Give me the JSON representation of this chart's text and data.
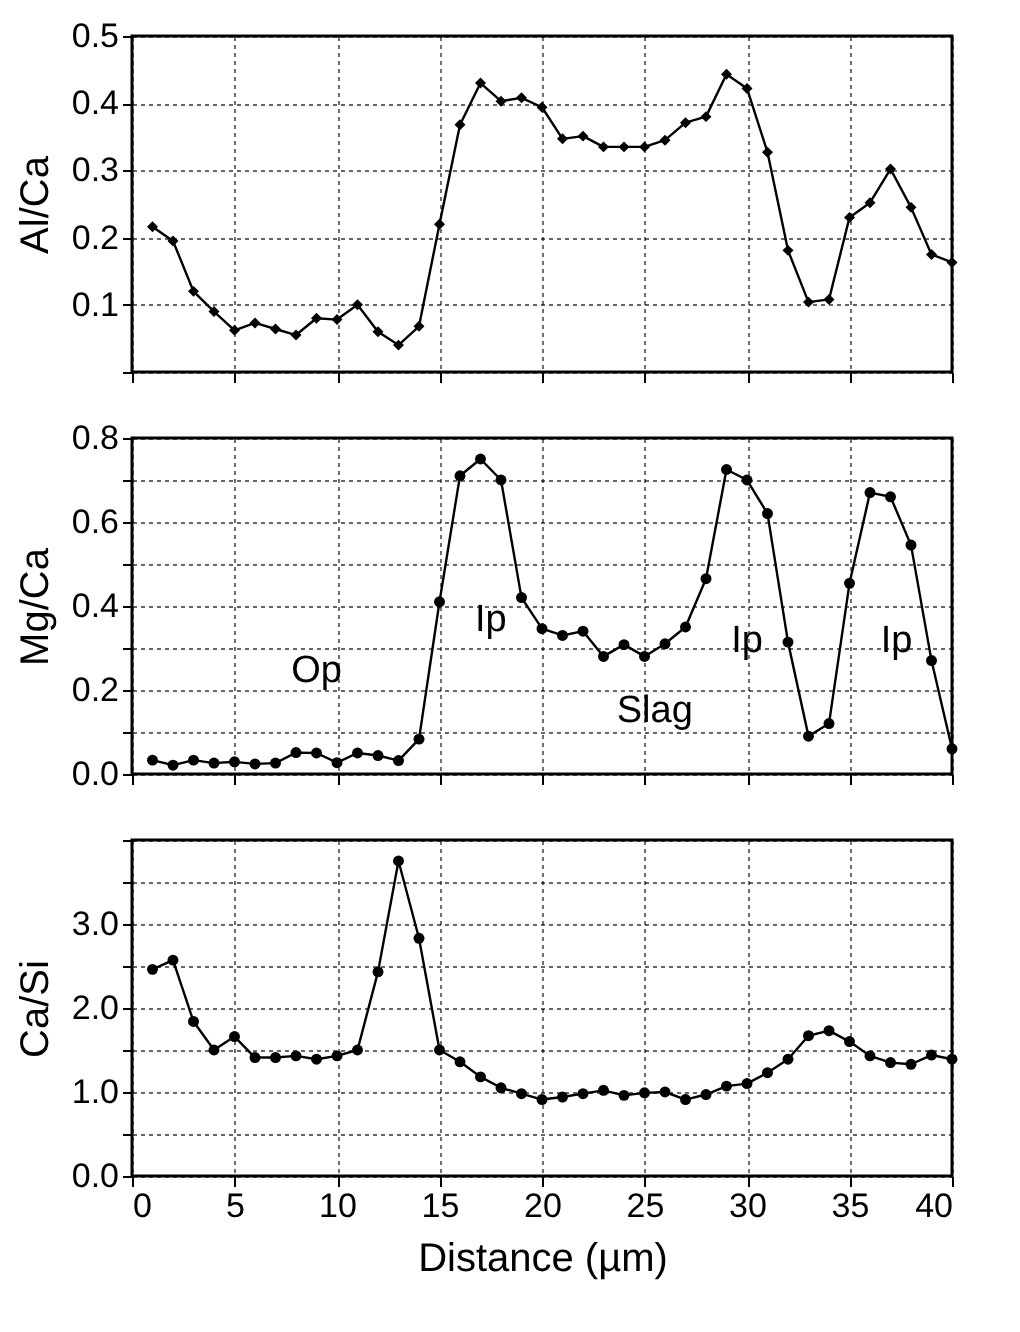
{
  "chart_data": [
    {
      "type": "line",
      "ylabel": "Al/Ca",
      "x": [
        1,
        2,
        3,
        4,
        5,
        6,
        7,
        8,
        9,
        10,
        11,
        12,
        13,
        14,
        15,
        16,
        17,
        18,
        19,
        20,
        21,
        22,
        23,
        24,
        25,
        26,
        27,
        28,
        29,
        30,
        31,
        32,
        33,
        34,
        35,
        36,
        37,
        38,
        39,
        40
      ],
      "series": [
        {
          "color": "#000000",
          "values": [
            0.216,
            0.195,
            0.12,
            0.09,
            0.062,
            0.073,
            0.064,
            0.055,
            0.08,
            0.078,
            0.1,
            0.06,
            0.04,
            0.068,
            0.22,
            0.368,
            0.43,
            0.403,
            0.408,
            0.394,
            0.347,
            0.351,
            0.335,
            0.335,
            0.335,
            0.345,
            0.371,
            0.38,
            0.443,
            0.422,
            0.327,
            0.181,
            0.104,
            0.108,
            0.23,
            0.252,
            0.302,
            0.245,
            0.175,
            0.163
          ]
        }
      ],
      "xlim": [
        0,
        40
      ],
      "xticks": [
        0,
        5,
        10,
        15,
        20,
        25,
        30,
        35,
        40
      ],
      "ylim": [
        0,
        0.5
      ],
      "yticks": [
        {
          "value": 0,
          "label": null
        },
        0.1,
        0.2,
        0.3,
        0.4,
        0.5
      ],
      "grid": true,
      "marker": "diamond",
      "line_style": "solid",
      "tick_labels": "y"
    },
    {
      "type": "line",
      "ylabel": "Mg/Ca",
      "x": [
        1,
        2,
        3,
        4,
        5,
        6,
        7,
        8,
        9,
        10,
        11,
        12,
        13,
        14,
        15,
        16,
        17,
        18,
        19,
        20,
        21,
        22,
        23,
        24,
        25,
        26,
        27,
        28,
        29,
        30,
        31,
        32,
        33,
        34,
        35,
        36,
        37,
        38,
        39,
        40
      ],
      "series": [
        {
          "color": "#000000",
          "values": [
            0.033,
            0.021,
            0.033,
            0.026,
            0.029,
            0.024,
            0.026,
            0.051,
            0.05,
            0.027,
            0.05,
            0.044,
            0.032,
            0.083,
            0.41,
            0.71,
            0.75,
            0.7,
            0.42,
            0.346,
            0.33,
            0.34,
            0.28,
            0.308,
            0.28,
            0.31,
            0.35,
            0.465,
            0.725,
            0.7,
            0.62,
            0.314,
            0.09,
            0.12,
            0.454,
            0.67,
            0.66,
            0.545,
            0.27,
            0.06
          ]
        }
      ],
      "xlim": [
        0,
        40
      ],
      "xticks": [
        0,
        5,
        10,
        15,
        20,
        25,
        30,
        35,
        40
      ],
      "ylim": [
        0,
        0.8
      ],
      "yticks": [
        {
          "value": 0,
          "label": "0.0"
        },
        {
          "value": 0.1,
          "label": null
        },
        0.2,
        {
          "value": 0.3,
          "label": null
        },
        0.4,
        {
          "value": 0.5,
          "label": null
        },
        0.6,
        {
          "value": 0.7,
          "label": null
        },
        0.8
      ],
      "annotations": [
        "Op",
        "Ip",
        "Slag",
        "Ip",
        "Ip"
      ],
      "grid": true,
      "marker": "circle",
      "line_style": "solid",
      "tick_labels": "y"
    },
    {
      "type": "line",
      "ylabel": "Ca/Si",
      "xlabel": "Distance (µm)",
      "x": [
        1,
        2,
        3,
        4,
        5,
        6,
        7,
        8,
        9,
        10,
        11,
        12,
        13,
        14,
        15,
        16,
        17,
        18,
        19,
        20,
        21,
        22,
        23,
        24,
        25,
        26,
        27,
        28,
        29,
        30,
        31,
        32,
        33,
        34,
        35,
        36,
        37,
        38,
        39,
        40
      ],
      "series": [
        {
          "color": "#000000",
          "values": [
            2.46,
            2.57,
            1.84,
            1.5,
            1.66,
            1.41,
            1.41,
            1.43,
            1.39,
            1.43,
            1.5,
            2.43,
            3.75,
            2.83,
            1.5,
            1.36,
            1.18,
            1.05,
            0.98,
            0.91,
            0.94,
            0.98,
            1.02,
            0.96,
            0.99,
            1.0,
            0.91,
            0.97,
            1.07,
            1.1,
            1.23,
            1.39,
            1.67,
            1.73,
            1.6,
            1.43,
            1.35,
            1.33,
            1.44,
            1.39
          ]
        }
      ],
      "xlim": [
        0,
        40
      ],
      "xticks": [
        0,
        5,
        10,
        15,
        20,
        25,
        30,
        35,
        40
      ],
      "ylim": [
        0,
        4
      ],
      "yticks": [
        {
          "value": 0,
          "label": "0.0"
        },
        {
          "value": 0.5,
          "label": null
        },
        {
          "value": 1,
          "label": "1.0"
        },
        {
          "value": 1.5,
          "label": null
        },
        {
          "value": 2,
          "label": "2.0"
        },
        {
          "value": 2.5,
          "label": null
        },
        {
          "value": 3,
          "label": "3.0"
        },
        {
          "value": 3.5,
          "label": null
        },
        {
          "value": 4,
          "label": null
        }
      ],
      "grid": true,
      "marker": "circle",
      "line_style": "solid"
    }
  ]
}
